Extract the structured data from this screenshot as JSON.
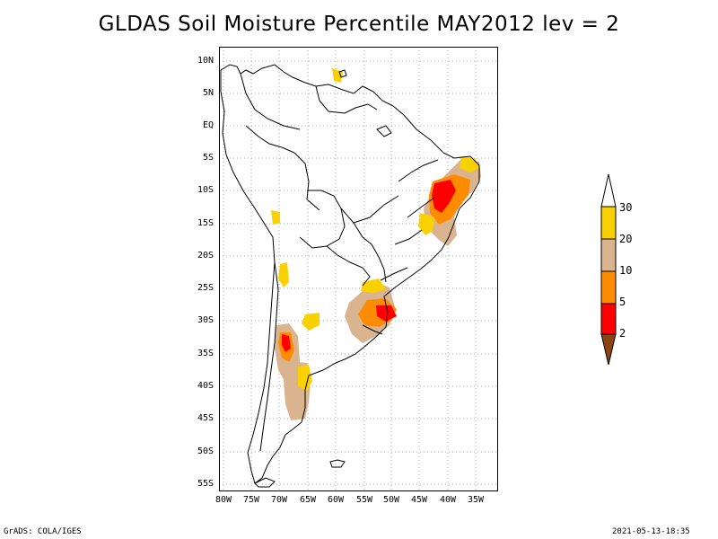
{
  "title": "GLDAS Soil Moisture Percentile MAY2012 lev = 2",
  "axes": {
    "lat_ticks": [
      "10N",
      "5N",
      "EQ",
      "5S",
      "10S",
      "15S",
      "20S",
      "25S",
      "30S",
      "35S",
      "40S",
      "45S",
      "50S",
      "55S"
    ],
    "lon_ticks": [
      "80W",
      "75W",
      "70W",
      "65W",
      "60W",
      "55W",
      "50W",
      "45W",
      "40W",
      "35W"
    ]
  },
  "legend": {
    "labels": [
      "30",
      "20",
      "10",
      "5",
      "2"
    ],
    "colors": {
      "above_30": "#ffffff",
      "20_30": "#fad100",
      "10_20": "#d9b48f",
      "5_10": "#ff8c00",
      "2_5": "#ff0000",
      "below_2": "#8b4513"
    }
  },
  "footer": {
    "left": "GrADS: COLA/IGES",
    "right": "2021-05-13-18:35"
  }
}
